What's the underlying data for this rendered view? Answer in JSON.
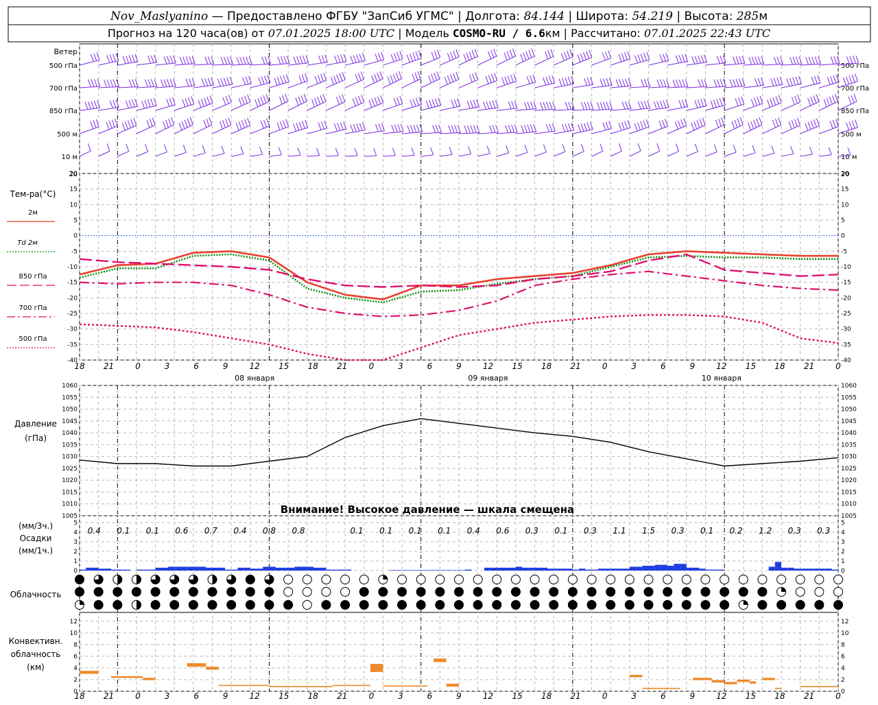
{
  "header": {
    "line1": [
      {
        "text": "Nov_Maslyanino",
        "style": "it"
      },
      {
        "text": " — Предоставлено ФГБУ \"ЗапСиб УГМС\" | Долгота: ",
        "style": "n"
      },
      {
        "text": "84.144",
        "style": "it"
      },
      {
        "text": " | Широта: ",
        "style": "n"
      },
      {
        "text": "54.219",
        "style": "it"
      },
      {
        "text": " | Высота: ",
        "style": "n"
      },
      {
        "text": "285",
        "style": "it"
      },
      {
        "text": "м",
        "style": "n"
      }
    ],
    "line2": [
      {
        "text": "Прогноз на 120 часа(ов) от ",
        "style": "n"
      },
      {
        "text": "07.01.2025 18:00 UTC",
        "style": "it"
      },
      {
        "text": "  | Модель ",
        "style": "n"
      },
      {
        "text": "COSMO-RU / 6.6",
        "style": "b"
      },
      {
        "text": "км | Рассчитано: ",
        "style": "n"
      },
      {
        "text": "07.01.2025 22:43 UTC",
        "style": "it"
      }
    ]
  },
  "time_axis": {
    "hour_labels": [
      "18",
      "21",
      "0",
      "3",
      "6",
      "9",
      "12",
      "15",
      "18",
      "21",
      "0",
      "3",
      "6",
      "9",
      "12",
      "15",
      "18",
      "21",
      "0",
      "3",
      "6",
      "9",
      "12",
      "15",
      "18",
      "21",
      "0"
    ],
    "day_labels": [
      {
        "label": "08 января",
        "at_index": 6
      },
      {
        "label": "09 января",
        "at_index": 14
      },
      {
        "label": "10 января",
        "at_index": 22
      }
    ]
  },
  "wind_panel": {
    "title": "Ветер",
    "levels": [
      "500 гПа",
      "700 гПа",
      "850 гПа",
      "500 м",
      "10 м"
    ],
    "right_tick": "20",
    "color": "#7b2be2"
  },
  "temperature_panel": {
    "title": "Тем-ра(°С)",
    "y_ticks": [
      20,
      15,
      10,
      5,
      0,
      -5,
      -10,
      -15,
      -20,
      -25,
      -30,
      -35,
      -40
    ],
    "legend": [
      {
        "label": "2м",
        "color": "#e8402c",
        "dash": "solid"
      },
      {
        "label": "Td  2м",
        "color": "#0a8a0a",
        "dash": "dotted"
      },
      {
        "label": "850 гПа",
        "color": "#e0106c",
        "dash": "longdash"
      },
      {
        "label": "700 гПа",
        "color": "#e0106c",
        "dash": "dashdot"
      },
      {
        "label": "500 гПа",
        "color": "#e0106c",
        "dash": "dotted"
      }
    ]
  },
  "pressure_panel": {
    "title": "Давление",
    "unit": "(гПа)",
    "y_ticks": [
      1060,
      1055,
      1050,
      1045,
      1040,
      1035,
      1030,
      1025,
      1020,
      1015,
      1010,
      1005
    ],
    "warning": "Внимание! Высокое давление — шкала смещена"
  },
  "precip_panel": {
    "title": "Осадки",
    "unit_top": "(мм/3ч.)",
    "unit_bottom": "(мм/1ч.)",
    "y_ticks": [
      "5",
      "4",
      "3",
      "2",
      "1",
      "0"
    ],
    "totals_3h": [
      {
        "hour_index": 0.5,
        "value": "0.4"
      },
      {
        "hour_index": 1.5,
        "value": "0.1"
      },
      {
        "hour_index": 2.5,
        "value": "0.1"
      },
      {
        "hour_index": 3.5,
        "value": "0.6"
      },
      {
        "hour_index": 4.5,
        "value": "0.7"
      },
      {
        "hour_index": 5.5,
        "value": "0.4"
      },
      {
        "hour_index": 6.5,
        "value": "0.8"
      },
      {
        "hour_index": 7.5,
        "value": "0.8"
      },
      {
        "hour_index": 9.5,
        "value": "0.1"
      },
      {
        "hour_index": 10.5,
        "value": "0.1"
      },
      {
        "hour_index": 11.5,
        "value": "0.1"
      },
      {
        "hour_index": 12.5,
        "value": "0.1"
      },
      {
        "hour_index": 13.5,
        "value": "0.4"
      },
      {
        "hour_index": 14.5,
        "value": "0.6"
      },
      {
        "hour_index": 15.5,
        "value": "0.3"
      },
      {
        "hour_index": 16.5,
        "value": "0.1"
      },
      {
        "hour_index": 17.5,
        "value": "0.3"
      },
      {
        "hour_index": 18.5,
        "value": "1.1"
      },
      {
        "hour_index": 19.5,
        "value": "1.5"
      },
      {
        "hour_index": 20.5,
        "value": "0.3"
      },
      {
        "hour_index": 21.5,
        "value": "0.1"
      },
      {
        "hour_index": 22.5,
        "value": "0.2"
      },
      {
        "hour_index": 23.5,
        "value": "1.2"
      },
      {
        "hour_index": 24.5,
        "value": "0.3"
      },
      {
        "hour_index": 25.5,
        "value": "0.3"
      }
    ],
    "bar_color": "#1f3fe0"
  },
  "cloud_panel": {
    "title": "Облачность"
  },
  "convective_panel": {
    "title_lines": [
      "Конвективн.",
      "облачность",
      "(км)"
    ],
    "y_ticks": [
      "12",
      "10",
      "8",
      "6",
      "4",
      "2",
      "0"
    ],
    "bar_color": "#ee8a2c"
  },
  "chart_data": [
    {
      "type": "line",
      "title": "Тем-ра(°С)",
      "x_unit": "hours from 07.01.2025 18:00 UTC",
      "ylim": [
        -40,
        20
      ],
      "series": [
        {
          "name": "2м",
          "x": [
            0,
            6,
            12,
            18,
            24,
            30,
            36,
            42,
            48,
            54,
            60,
            66,
            72,
            78,
            84,
            90,
            96,
            102,
            108,
            114,
            120
          ],
          "values": [
            -12.5,
            -9.5,
            -9,
            -5.5,
            -5,
            -7,
            -15,
            -19,
            -20.5,
            -16,
            -16,
            -14,
            -13,
            -12,
            -9.5,
            -6,
            -5,
            -5.5,
            -6,
            -6.5,
            -6.5
          ]
        },
        {
          "name": "Td  2м",
          "x": [
            0,
            6,
            12,
            18,
            24,
            30,
            36,
            42,
            48,
            54,
            60,
            66,
            72,
            78,
            84,
            90,
            96,
            102,
            108,
            114,
            120
          ],
          "values": [
            -13.5,
            -10.5,
            -10.5,
            -6.5,
            -6,
            -8,
            -17,
            -20,
            -21.5,
            -18,
            -17.5,
            -15.5,
            -14,
            -13,
            -10,
            -7,
            -6.5,
            -7,
            -7,
            -7.5,
            -7.5
          ]
        },
        {
          "name": "850 гПа",
          "x": [
            0,
            6,
            12,
            18,
            24,
            30,
            36,
            42,
            48,
            54,
            60,
            66,
            72,
            78,
            84,
            90,
            96,
            102,
            108,
            114,
            120
          ],
          "values": [
            -7.5,
            -8.5,
            -9,
            -9.5,
            -10,
            -11,
            -14,
            -16,
            -16.5,
            -16,
            -16.5,
            -16,
            -14,
            -13,
            -11.5,
            -8,
            -6,
            -11,
            -12,
            -13,
            -12.5
          ]
        },
        {
          "name": "700 гПа",
          "x": [
            0,
            6,
            12,
            18,
            24,
            30,
            36,
            42,
            48,
            54,
            60,
            66,
            72,
            78,
            84,
            90,
            96,
            102,
            108,
            114,
            120
          ],
          "values": [
            -15,
            -15.5,
            -15,
            -15,
            -16,
            -19,
            -23,
            -25,
            -26,
            -25.5,
            -24,
            -21,
            -16,
            -14,
            -12.5,
            -11.5,
            -13,
            -14.5,
            -16,
            -17,
            -17.5
          ]
        },
        {
          "name": "500 гПа",
          "x": [
            0,
            6,
            12,
            18,
            24,
            30,
            36,
            42,
            48,
            54,
            60,
            66,
            72,
            78,
            84,
            90,
            96,
            102,
            108,
            114,
            120
          ],
          "values": [
            -28.5,
            -29,
            -29.5,
            -31,
            -33,
            -35,
            -38,
            -40,
            -40,
            -36,
            -32,
            -30,
            -28,
            -27,
            -26,
            -25.5,
            -25.5,
            -26,
            -28,
            -33,
            -34.5
          ]
        }
      ]
    },
    {
      "type": "line",
      "title": "Давление",
      "ylabel": "(гПа)",
      "x_unit": "hours from 07.01.2025 18:00 UTC",
      "ylim": [
        1005,
        1060
      ],
      "series": [
        {
          "x": [
            0,
            6,
            12,
            18,
            24,
            30,
            36,
            42,
            48,
            54,
            60,
            66,
            72,
            78,
            84,
            90,
            96,
            102,
            108,
            114,
            120
          ],
          "values": [
            1028.5,
            1027,
            1027,
            1026,
            1026,
            1028,
            1030,
            1038,
            1043,
            1046,
            1044,
            1042,
            1040,
            1038.5,
            1036,
            1032,
            1029,
            1026,
            1027,
            1028,
            1029.5
          ]
        }
      ]
    },
    {
      "type": "bar",
      "title": "Осадки",
      "ylabel": "(мм/1ч.)",
      "x_unit": "hours from 07.01.2025 18:00 UTC",
      "ylim": [
        0,
        5
      ],
      "x": [
        1,
        2,
        3,
        4,
        5,
        6,
        7,
        8,
        9,
        10,
        11,
        12,
        13,
        14,
        15,
        16,
        17,
        18,
        19,
        20,
        21,
        22,
        23,
        24,
        25,
        26,
        27,
        28,
        29,
        30,
        31,
        32,
        33,
        34,
        35,
        36,
        37,
        38,
        39,
        40,
        41,
        42,
        43,
        44,
        45,
        46,
        47,
        48,
        49,
        50,
        51,
        52,
        53,
        54,
        55,
        56,
        57,
        58,
        59,
        60,
        61,
        62,
        63,
        64,
        65,
        66,
        67,
        68,
        69,
        70,
        71,
        72,
        73,
        74,
        75,
        76,
        77,
        78,
        79,
        80,
        81,
        82,
        83,
        84,
        85,
        86,
        87,
        88,
        89,
        90,
        91,
        92,
        93,
        94,
        95,
        96,
        97,
        98,
        99,
        100,
        101,
        102,
        103,
        104,
        105,
        106,
        107,
        108,
        109,
        110,
        111,
        112,
        113,
        114,
        115,
        116,
        117,
        118,
        119,
        120
      ],
      "values": [
        0.1,
        0.3,
        0.3,
        0.2,
        0.2,
        0.1,
        0.1,
        0.1,
        0.0,
        0.1,
        0.1,
        0.1,
        0.3,
        0.3,
        0.4,
        0.4,
        0.4,
        0.4,
        0.4,
        0.4,
        0.3,
        0.3,
        0.3,
        0.1,
        0.1,
        0.3,
        0.3,
        0.2,
        0.2,
        0.4,
        0.4,
        0.3,
        0.3,
        0.3,
        0.4,
        0.4,
        0.4,
        0.3,
        0.3,
        0.1,
        0.1,
        0.1,
        0.1,
        0.0,
        0.0,
        0.0,
        0.0,
        0.0,
        0.0,
        0.05,
        0.05,
        0.05,
        0.05,
        0.05,
        0.05,
        0.05,
        0.05,
        0.05,
        0.05,
        0.05,
        0.05,
        0.1,
        0.0,
        0.0,
        0.3,
        0.3,
        0.3,
        0.3,
        0.3,
        0.4,
        0.3,
        0.3,
        0.3,
        0.3,
        0.2,
        0.2,
        0.2,
        0.2,
        0.1,
        0.2,
        0.1,
        0.1,
        0.2,
        0.2,
        0.2,
        0.2,
        0.2,
        0.4,
        0.4,
        0.5,
        0.5,
        0.6,
        0.6,
        0.5,
        0.7,
        0.7,
        0.3,
        0.3,
        0.2,
        0.1,
        0.1,
        0.1,
        0.0,
        0.0,
        0.0,
        0.0,
        0.0,
        0.0,
        0.0,
        0.4,
        0.9,
        0.3,
        0.3,
        0.2,
        0.2,
        0.2,
        0.2,
        0.2,
        0.2,
        0.1
      ]
    },
    {
      "type": "heatmap",
      "title": "Облачность",
      "x_unit": "hours from 07.01.2025 18:00 UTC",
      "rows": [
        "upper",
        "middle",
        "lower"
      ],
      "x": [
        0,
        3,
        6,
        9,
        12,
        15,
        18,
        21,
        24,
        27,
        30,
        33,
        36,
        39,
        42,
        45,
        48,
        51,
        54,
        57,
        60,
        63,
        66,
        69,
        72,
        75,
        78,
        81,
        84,
        87,
        90,
        93,
        96,
        99,
        102,
        105,
        108,
        111,
        114,
        117,
        120
      ],
      "values": [
        [
          1.0,
          0.75,
          0.5,
          0.5,
          0.75,
          0.75,
          0.75,
          0.5,
          0.75,
          1.0,
          0.75,
          0.0,
          0.0,
          0.0,
          0.0,
          0.0,
          0.25,
          0.0,
          0.0,
          0.0,
          0.0,
          0.0,
          0.0,
          0.0,
          0.0,
          0.0,
          0.0,
          0.0,
          0.0,
          0.0,
          0.0,
          0.0,
          0.0,
          0.0,
          0.0,
          0.0,
          0.0,
          0.0,
          0.0,
          0.0,
          0.0
        ],
        [
          1.0,
          1.0,
          1.0,
          1.0,
          1.0,
          1.0,
          1.0,
          1.0,
          1.0,
          1.0,
          1.0,
          0.0,
          0.0,
          0.0,
          0.0,
          1.0,
          1.0,
          1.0,
          1.0,
          1.0,
          1.0,
          1.0,
          1.0,
          1.0,
          1.0,
          1.0,
          1.0,
          1.0,
          1.0,
          1.0,
          1.0,
          1.0,
          1.0,
          1.0,
          1.0,
          1.0,
          1.0,
          0.25,
          0.0,
          0.0,
          0.0
        ],
        [
          0.25,
          1.0,
          1.0,
          0.5,
          1.0,
          1.0,
          1.0,
          1.0,
          1.0,
          1.0,
          1.0,
          1.0,
          0.0,
          1.0,
          1.0,
          1.0,
          1.0,
          1.0,
          1.0,
          1.0,
          1.0,
          1.0,
          1.0,
          1.0,
          1.0,
          1.0,
          1.0,
          1.0,
          1.0,
          1.0,
          1.0,
          1.0,
          1.0,
          1.0,
          1.0,
          0.25,
          1.0,
          1.0,
          1.0,
          1.0,
          1.0
        ]
      ]
    },
    {
      "type": "bar",
      "title": "Конвективн. облачность",
      "ylabel": "(км)",
      "x_unit": "hours from 07.01.2025 18:00 UTC",
      "ylim": [
        0,
        13
      ],
      "bars": [
        {
          "x0": 0,
          "x1": 3,
          "base": 3.0,
          "top": 3.5
        },
        {
          "x0": 5,
          "x1": 10,
          "base": 2.3,
          "top": 2.6
        },
        {
          "x0": 10,
          "x1": 12,
          "base": 1.9,
          "top": 2.3
        },
        {
          "x0": 17,
          "x1": 20,
          "base": 4.2,
          "top": 4.8
        },
        {
          "x0": 20,
          "x1": 22,
          "base": 3.7,
          "top": 4.2
        },
        {
          "x0": 22,
          "x1": 30,
          "base": 0.9,
          "top": 1.1
        },
        {
          "x0": 30,
          "x1": 40,
          "base": 0.7,
          "top": 0.9
        },
        {
          "x0": 40,
          "x1": 46,
          "base": 0.9,
          "top": 1.1
        },
        {
          "x0": 46,
          "x1": 48,
          "base": 3.3,
          "top": 4.7
        },
        {
          "x0": 48,
          "x1": 55,
          "base": 0.8,
          "top": 1.0
        },
        {
          "x0": 56,
          "x1": 58,
          "base": 5.0,
          "top": 5.6
        },
        {
          "x0": 58,
          "x1": 60,
          "base": 0.8,
          "top": 1.3
        },
        {
          "x0": 87,
          "x1": 89,
          "base": 2.4,
          "top": 2.8
        },
        {
          "x0": 89,
          "x1": 95,
          "base": 0.4,
          "top": 0.6
        },
        {
          "x0": 97,
          "x1": 100,
          "base": 1.9,
          "top": 2.3
        },
        {
          "x0": 100,
          "x1": 102,
          "base": 1.5,
          "top": 1.9
        },
        {
          "x0": 102,
          "x1": 104,
          "base": 1.2,
          "top": 1.6
        },
        {
          "x0": 104,
          "x1": 106,
          "base": 1.6,
          "top": 2.0
        },
        {
          "x0": 106,
          "x1": 107,
          "base": 1.3,
          "top": 1.7
        },
        {
          "x0": 108,
          "x1": 110,
          "base": 1.9,
          "top": 2.3
        },
        {
          "x0": 110,
          "x1": 111,
          "base": 0.4,
          "top": 0.6
        },
        {
          "x0": 114,
          "x1": 120,
          "base": 0.7,
          "top": 0.9
        }
      ]
    }
  ]
}
